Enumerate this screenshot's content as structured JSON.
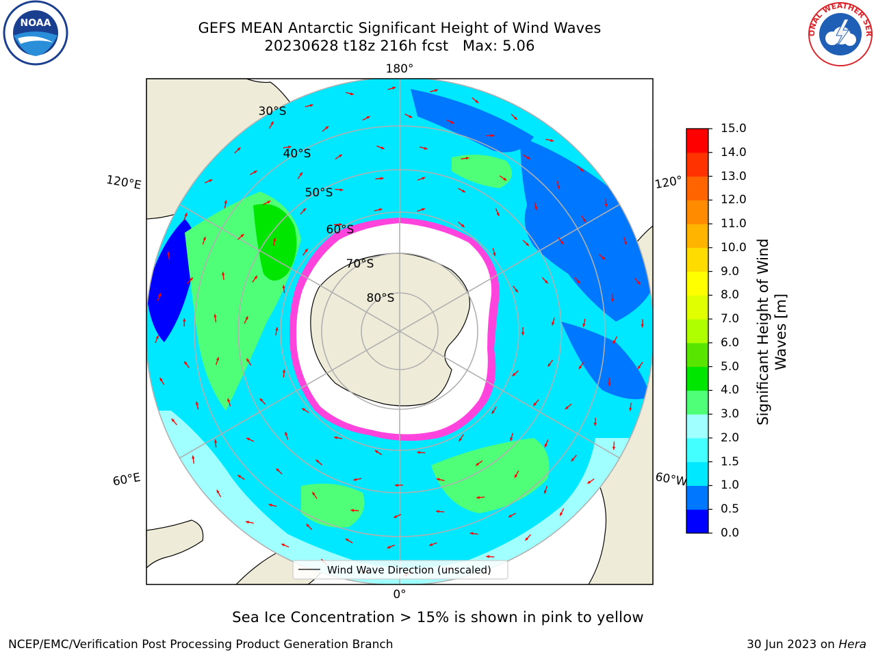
{
  "header": {
    "title_line1": "GEFS MEAN Antarctic Significant Height of Wind Waves",
    "title_line2": "20230628 t18z 216h fcst   Max: 5.06"
  },
  "logos": {
    "left": "noaa-logo",
    "right": "national-weather-service-logo",
    "left_text": "NOAA",
    "right_text": "NATIONAL WEATHER SERVICE"
  },
  "map": {
    "projection": "south-polar-stereographic",
    "lon_labels": {
      "top": "180°",
      "bottom": "0°",
      "upper_left": "120°E",
      "upper_right": "120°",
      "lower_left": "60°E",
      "lower_right": "60°W"
    },
    "lat_labels": [
      "30°S",
      "40°S",
      "50°S",
      "60°S",
      "70°S",
      "80°S"
    ],
    "legend_label": "Wind Wave Direction (unscaled)",
    "colors": {
      "land": "#eeecd8",
      "ice": "#ffffff",
      "grid": "#b0b0b0",
      "arrow": "#ff0000",
      "sea_ice_edge": "#ff44dd"
    }
  },
  "colorbar": {
    "label": "Significant Height of Wind Waves [m]",
    "ticks": [
      "0.0",
      "0.5",
      "1.0",
      "1.5",
      "2.0",
      "3.0",
      "4.0",
      "5.0",
      "6.0",
      "7.0",
      "8.0",
      "9.0",
      "10.0",
      "11.0",
      "12.0",
      "13.0",
      "14.0",
      "15.0"
    ],
    "colors": [
      "#0000ff",
      "#0077ff",
      "#00e8ff",
      "#44ffff",
      "#a0ffff",
      "#50ff78",
      "#00e600",
      "#58e600",
      "#b0ff00",
      "#e0ff00",
      "#ffff00",
      "#ffdc00",
      "#ffb400",
      "#ff8c00",
      "#ff6400",
      "#ff3200",
      "#ff0000"
    ]
  },
  "note": "Sea Ice Concentration > 15% is shown in pink to yellow",
  "footer": {
    "left": "NCEP/EMC/Verification Post Processing Product Generation Branch",
    "right_date": "30 Jun 2023 on ",
    "right_host": "Hera"
  }
}
